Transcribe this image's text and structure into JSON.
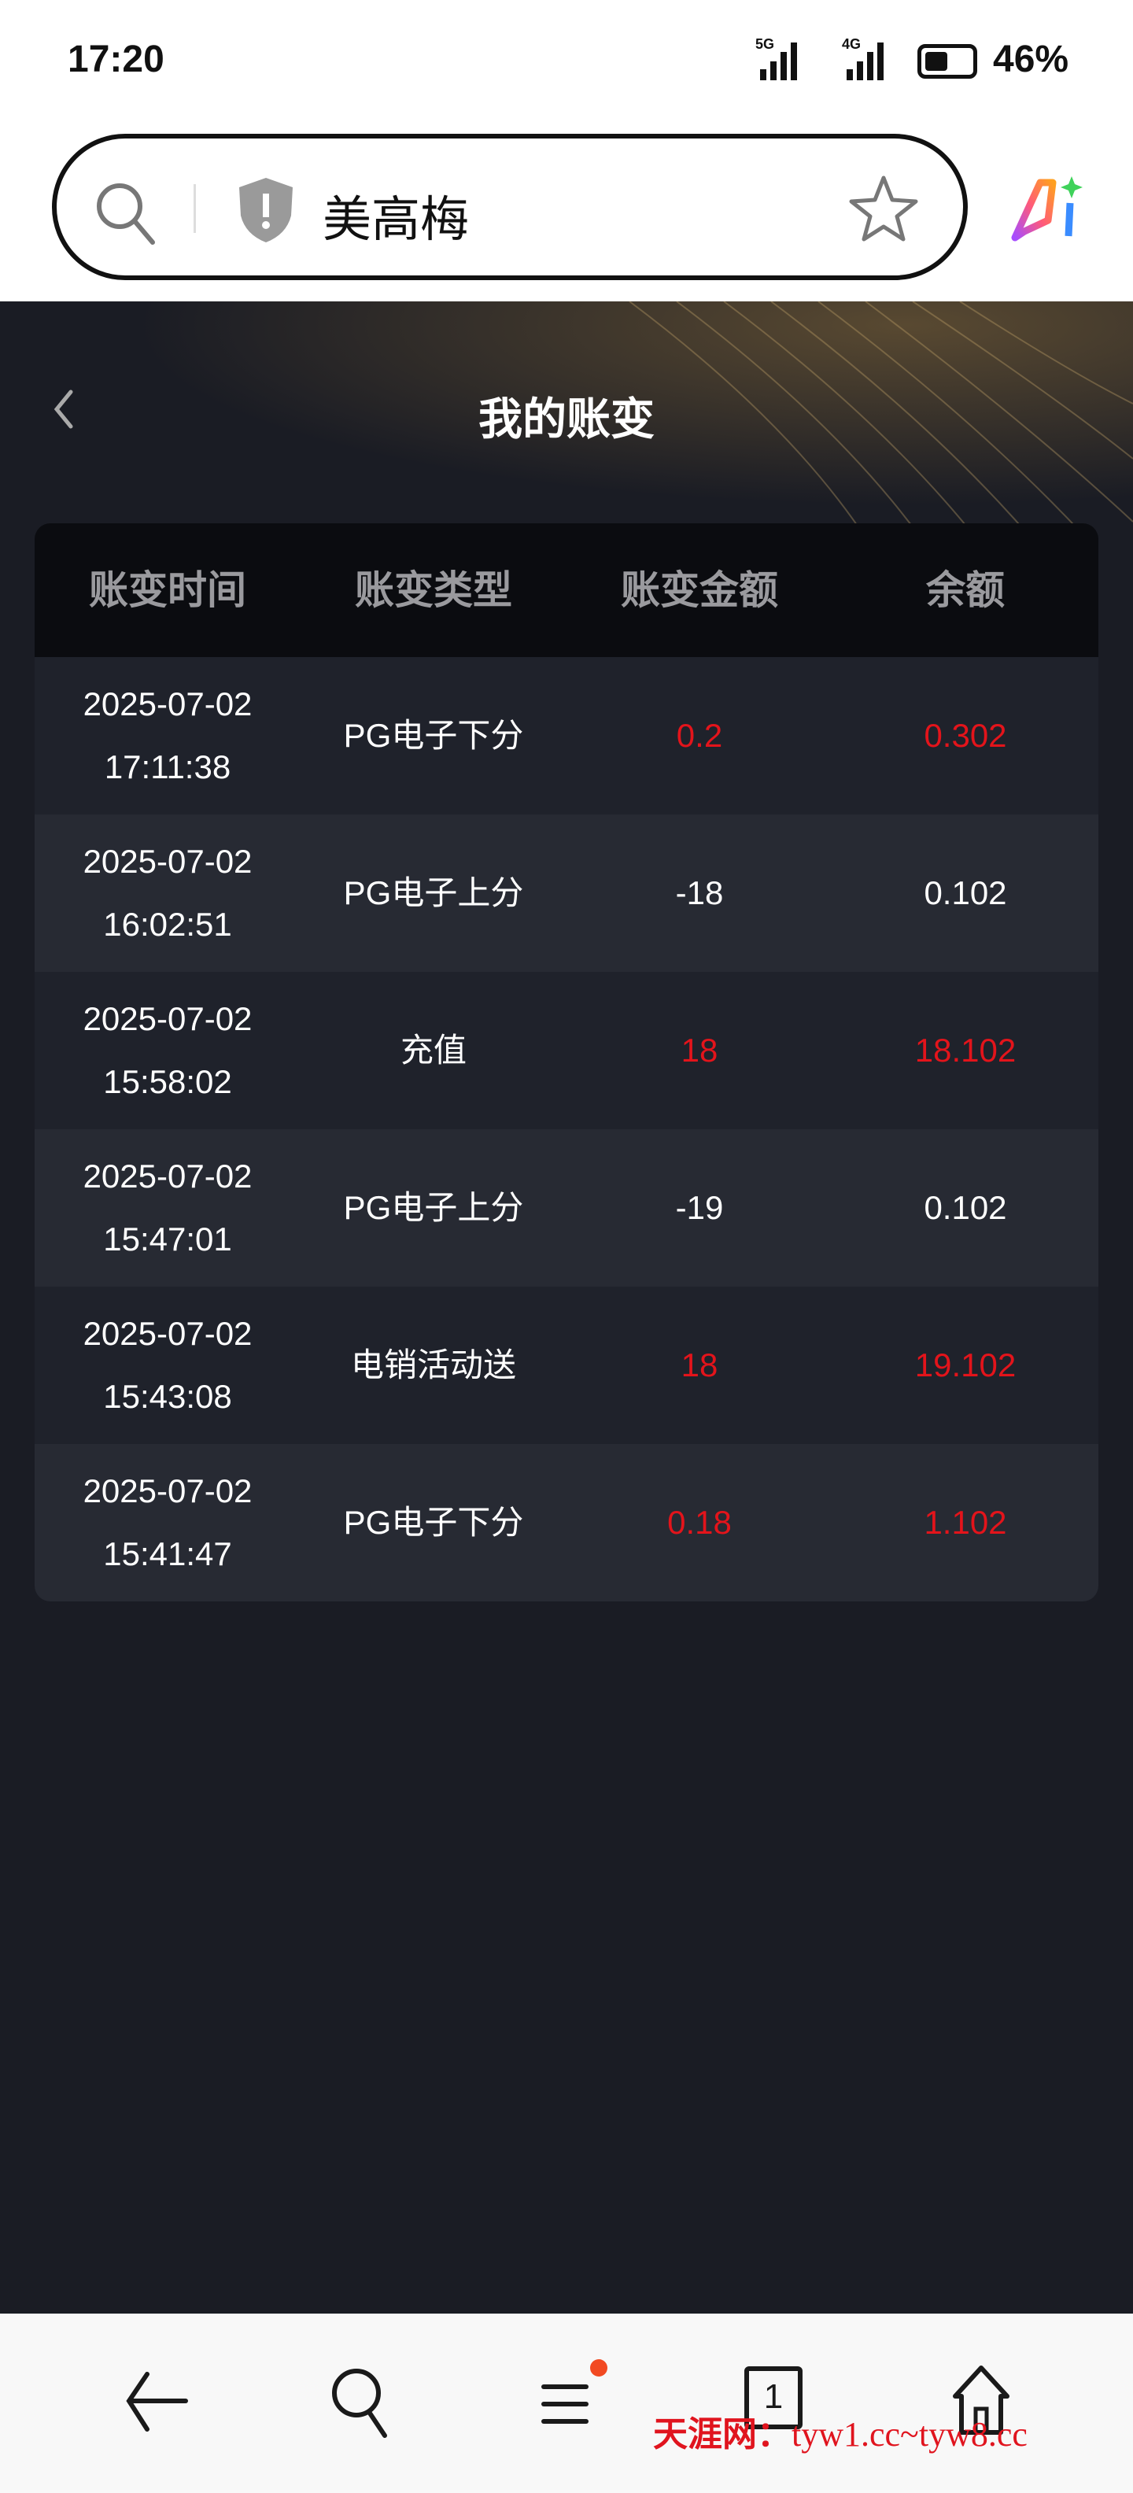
{
  "status_bar": {
    "time": "17:20",
    "network1": "5G",
    "network2": "4G",
    "battery_percent": "46%",
    "battery_level": 46
  },
  "browser": {
    "address_text": "美高梅"
  },
  "page": {
    "title": "我的账变"
  },
  "table": {
    "headers": [
      "账变时间",
      "账变类型",
      "账变金额",
      "余额"
    ],
    "rows": [
      {
        "date": "2025-07-02",
        "time": "17:11:38",
        "type": "PG电子下分",
        "amount": "0.2",
        "balance": "0.302",
        "highlight": true
      },
      {
        "date": "2025-07-02",
        "time": "16:02:51",
        "type": "PG电子上分",
        "amount": "-18",
        "balance": "0.102",
        "highlight": false
      },
      {
        "date": "2025-07-02",
        "time": "15:58:02",
        "type": "充值",
        "amount": "18",
        "balance": "18.102",
        "highlight": true
      },
      {
        "date": "2025-07-02",
        "time": "15:47:01",
        "type": "PG电子上分",
        "amount": "-19",
        "balance": "0.102",
        "highlight": false
      },
      {
        "date": "2025-07-02",
        "time": "15:43:08",
        "type": "电销活动送",
        "amount": "18",
        "balance": "19.102",
        "highlight": true
      },
      {
        "date": "2025-07-02",
        "time": "15:41:47",
        "type": "PG电子下分",
        "amount": "0.18",
        "balance": "1.102",
        "highlight": true
      }
    ]
  },
  "bottom_nav": {
    "tab_count": "1"
  },
  "watermark": {
    "name": "天涯网：",
    "url": "tyw1.cc~tyw8.cc"
  },
  "colors": {
    "positive": "#e3141b",
    "background": "#1a1c24",
    "header": "#0b0c10"
  }
}
